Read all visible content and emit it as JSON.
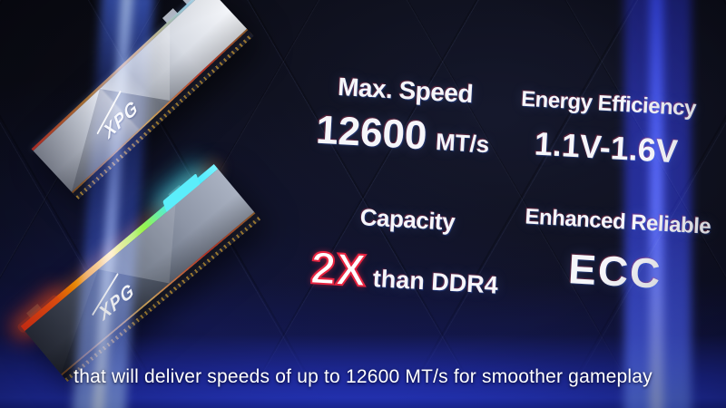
{
  "brand": {
    "name": "XPG"
  },
  "stats": [
    {
      "label": "Max. Speed",
      "value": "12600",
      "unit": "MT/s"
    },
    {
      "label": "Energy Efficiency",
      "value": "1.1V-1.6V"
    },
    {
      "label": "Capacity",
      "value": "2X",
      "value_suffix": "than DDR4"
    },
    {
      "label": "Enhanced Reliable",
      "value": "ECC"
    }
  ],
  "subtitle": {
    "text": "that will deliver speeds of up to 12600 MT/s for smoother gameplay"
  },
  "modules": [
    {
      "logo": "XPG",
      "finish": "silver heatsink"
    },
    {
      "logo": "XPG",
      "finish": "graphite heatsink with RGB strip"
    }
  ],
  "colors": {
    "background": "#0c0d17",
    "text_white": "#f5f6fa",
    "accent_red": "#e82440",
    "beam_blue": "#2b3cf0",
    "caption_band_blue": "#2636c2",
    "rgb_strip": [
      "#ff2a10",
      "#ff9a00",
      "#ffe35a",
      "#9cf542",
      "#3be9ff"
    ]
  }
}
